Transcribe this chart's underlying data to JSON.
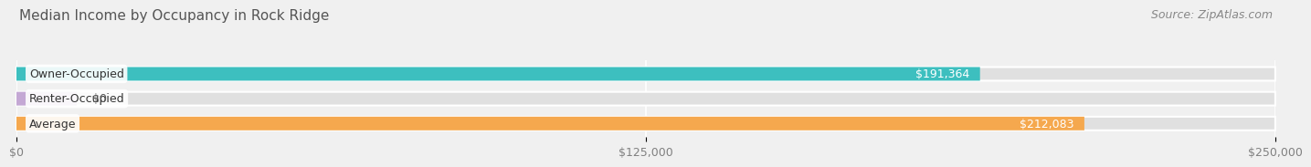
{
  "title": "Median Income by Occupancy in Rock Ridge",
  "source": "Source: ZipAtlas.com",
  "categories": [
    "Owner-Occupied",
    "Renter-Occupied",
    "Average"
  ],
  "values": [
    191364,
    0,
    212083
  ],
  "bar_colors": [
    "#3dbfbf",
    "#c4a8d4",
    "#f5a84e"
  ],
  "bar_labels": [
    "$191,364",
    "$0",
    "$212,083"
  ],
  "xlim": [
    0,
    250000
  ],
  "xtick_values": [
    0,
    125000,
    250000
  ],
  "xtick_labels": [
    "$0",
    "$125,000",
    "$250,000"
  ],
  "bg_color": "#f0f0f0",
  "bar_bg_color": "#e0e0e0",
  "title_fontsize": 11,
  "source_fontsize": 9,
  "label_fontsize": 9,
  "tick_fontsize": 9,
  "renter_bar_width": 12000
}
